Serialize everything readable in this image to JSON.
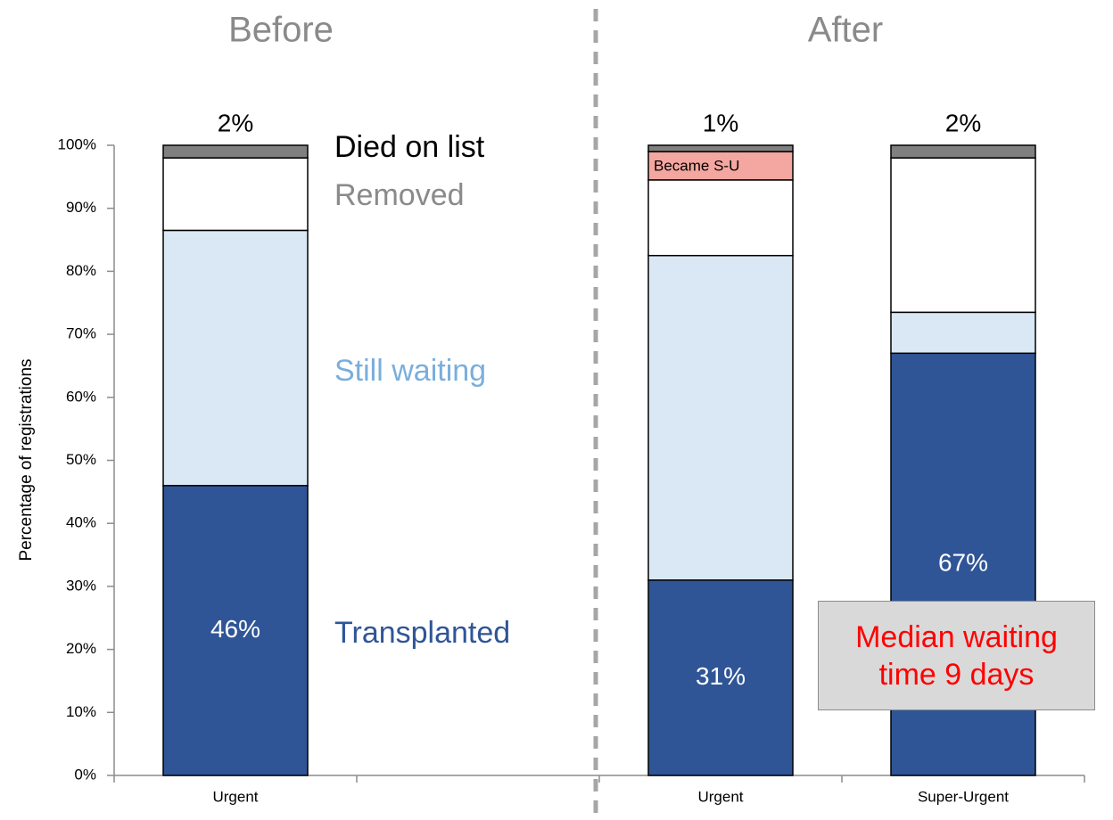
{
  "chart_data": {
    "type": "stacked-bar",
    "group_labels": [
      "Before",
      "After"
    ],
    "y_label": "Percentage of registrations",
    "categories": [
      "Urgent",
      null,
      "Urgent",
      "Super-Urgent"
    ],
    "series": [
      {
        "name": "Transplanted",
        "color": "#2f5597",
        "values": [
          46,
          null,
          31,
          67
        ],
        "value_labels": [
          "46%",
          null,
          "31%",
          "67%"
        ]
      },
      {
        "name": "Still waiting",
        "color": "#dae8f5",
        "values": [
          40.5,
          null,
          51.5,
          6.5
        ]
      },
      {
        "name": "Removed",
        "color": "#ffffff",
        "values": [
          11.5,
          null,
          12,
          24.5
        ]
      },
      {
        "name": "Became S-U",
        "color": "#f4a6a0",
        "values": [
          null,
          null,
          4.5,
          null
        ]
      },
      {
        "name": "Died on list",
        "color": "#808080",
        "values": [
          2,
          null,
          1,
          2
        ],
        "value_labels": [
          "2%",
          null,
          "1%",
          "2%"
        ]
      }
    ],
    "ylim": [
      0,
      100
    ],
    "yticks": [
      {
        "value": 0,
        "label": "0%"
      },
      {
        "value": 10,
        "label": "10%"
      },
      {
        "value": 20,
        "label": "20%"
      },
      {
        "value": 30,
        "label": "30%"
      },
      {
        "value": 40,
        "label": "40%"
      },
      {
        "value": 50,
        "label": "50%"
      },
      {
        "value": 60,
        "label": "60%"
      },
      {
        "value": 70,
        "label": "70%"
      },
      {
        "value": 80,
        "label": "80%"
      },
      {
        "value": 90,
        "label": "90%"
      },
      {
        "value": 100,
        "label": "100%"
      }
    ],
    "annotation": "Median waiting time 9 days"
  }
}
